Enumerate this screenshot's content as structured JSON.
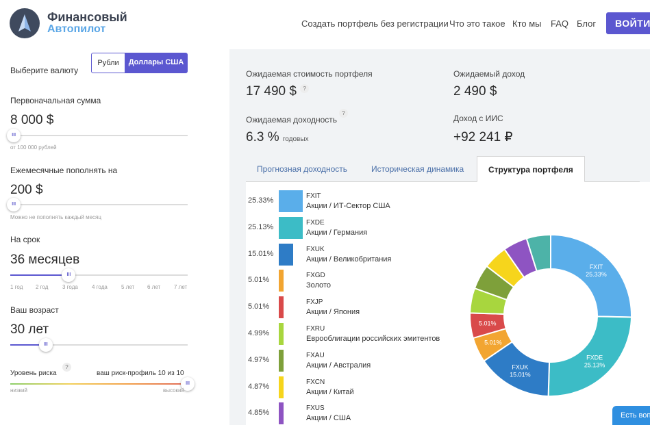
{
  "header": {
    "logo_line1": "Финансовый",
    "logo_line2": "Автопилот",
    "nav": [
      "Создать портфель без регистрации",
      "Что это такое",
      "Кто мы",
      "FAQ",
      "Блог"
    ],
    "login_label": "ВОЙТИ"
  },
  "left": {
    "currency_label": "Выберите валюту",
    "currency_options": [
      "Рубли",
      "Доллары США"
    ],
    "currency_selected": "Доллары США",
    "initial_label": "Первоначальная сумма",
    "initial_value": "8 000 $",
    "initial_hint": "от 100 000 рублей",
    "monthly_label": "Ежемесячные пополнять на",
    "monthly_value": "200 $",
    "monthly_hint": "Можно не пополнять каждый месяц",
    "term_label": "На срок",
    "term_value": "36 месяцев",
    "term_ticks": [
      "1 год",
      "2 год",
      "3 года",
      "4 года",
      "5 лет",
      "6 лет",
      "7 лет"
    ],
    "age_label": "Ваш возраст",
    "age_value": "30 лет",
    "risk_label": "Уровень риска",
    "risk_profile": "ваш риск-профиль 10 из 10",
    "risk_low": "низкий",
    "risk_high": "высокий",
    "thumb_glyph": "III",
    "initial_slider_level": 0.02,
    "monthly_slider_level": 0.02,
    "term_slider_level": 0.33,
    "age_slider_level": 0.2,
    "risk_slider_level": 1.0
  },
  "summary": {
    "expected_value_label": "Ожидаемая стоимость портфеля",
    "expected_value": "17 490 $",
    "expected_income_label": "Ожидаемый доход",
    "expected_income": "2 490 $",
    "expected_return_label": "Ожидаемая доходность",
    "expected_return": "6.3 %",
    "expected_return_unit": "годовых",
    "iis_label": "Доход с ИИС",
    "iis_value": "+92 241 ₽",
    "help_glyph": "?"
  },
  "tabs": [
    "Прогнозная доходность",
    "Историческая динамика",
    "Структура портфеля"
  ],
  "active_tab": "Структура портфеля",
  "chart_data": {
    "type": "pie",
    "donut": true,
    "slices": [
      {
        "ticker": "FXIT",
        "desc": "Акции / ИТ-Сектор США",
        "pct_label": "25.33%",
        "value": 25.33,
        "color": "#5aaeea",
        "chart_label": "FXIT\n25.33%"
      },
      {
        "ticker": "FXDE",
        "desc": "Акции / Германия",
        "pct_label": "25.13%",
        "value": 25.13,
        "color": "#3cbcc6",
        "chart_label": "FXDE\n25.13%"
      },
      {
        "ticker": "FXUK",
        "desc": "Акции / Великобритания",
        "pct_label": "15.01%",
        "value": 15.01,
        "color": "#2e7cc6",
        "chart_label": "FXUK\n15.01%"
      },
      {
        "ticker": "FXGD",
        "desc": "Золото",
        "pct_label": "5.01%",
        "value": 5.01,
        "color": "#f2a531",
        "chart_label": "5.01%"
      },
      {
        "ticker": "FXJP",
        "desc": "Акции / Япония",
        "pct_label": "5.01%",
        "value": 5.01,
        "color": "#d94a4a",
        "chart_label": "5.01%"
      },
      {
        "ticker": "FXRU",
        "desc": "Еврооблигации российских эмитентов",
        "pct_label": "4.99%",
        "value": 4.99,
        "color": "#a8d63e",
        "chart_label": ""
      },
      {
        "ticker": "FXAU",
        "desc": "Акции / Австралия",
        "pct_label": "4.97%",
        "value": 4.97,
        "color": "#7ea03a",
        "chart_label": ""
      },
      {
        "ticker": "FXCN",
        "desc": "Акции / Китай",
        "pct_label": "4.87%",
        "value": 4.87,
        "color": "#f6d51c",
        "chart_label": ""
      },
      {
        "ticker": "FXUS",
        "desc": "Акции / США",
        "pct_label": "4.85%",
        "value": 4.85,
        "color": "#8e54c2",
        "chart_label": ""
      },
      {
        "ticker": "",
        "desc": "",
        "pct_label": "",
        "value": 4.83,
        "color": "#4db3a8",
        "chart_label": ""
      }
    ]
  },
  "chat_label": "Есть воп"
}
